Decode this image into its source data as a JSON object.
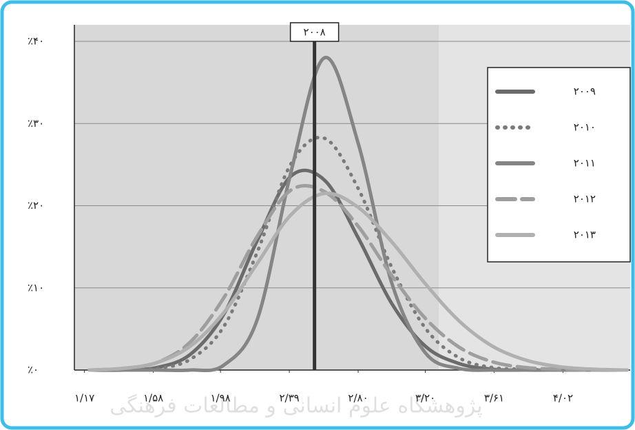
{
  "chart_data": {
    "type": "line",
    "x": [
      1.2,
      1.4,
      1.6,
      1.8,
      2.0,
      2.2,
      2.4,
      2.6,
      2.8,
      3.0,
      3.2,
      3.4,
      3.6,
      3.8,
      4.0,
      4.2,
      4.4
    ],
    "series": [
      {
        "name": "۲۰۰۹",
        "color": "#6b6b6b",
        "style": "solid",
        "values": [
          0,
          0,
          0.3,
          1.9,
          6.8,
          15.8,
          23.6,
          23.1,
          16.1,
          8.1,
          2.9,
          0.8,
          0.1,
          0,
          0,
          0,
          0
        ]
      },
      {
        "name": "۲۰۱۰",
        "color": "#7a7a7a",
        "style": "dotted",
        "values": [
          0,
          0,
          0.2,
          1.3,
          5.3,
          14.4,
          25.1,
          28.2,
          22.1,
          12.5,
          5.1,
          1.5,
          0.3,
          0.1,
          0,
          0,
          0
        ]
      },
      {
        "name": "۲۰۱۱",
        "color": "#858585",
        "style": "solid",
        "values": [
          0,
          0,
          0,
          0,
          0.6,
          6.2,
          24.1,
          38,
          27.6,
          10.6,
          2.1,
          0.2,
          0,
          0,
          0,
          0,
          0
        ]
      },
      {
        "name": "۲۰۱۲",
        "color": "#9e9e9e",
        "style": "dashed",
        "values": [
          0,
          0.2,
          0.9,
          3.4,
          8.8,
          16.3,
          21.9,
          21.7,
          17.5,
          11.5,
          6.3,
          2.8,
          1.0,
          0.3,
          0.1,
          0,
          0
        ]
      },
      {
        "name": "۲۰۱۳",
        "color": "#b0b0b0",
        "style": "solid",
        "values": [
          0,
          0.2,
          0.9,
          2.9,
          7.0,
          13.0,
          18.9,
          21.5,
          19.8,
          15.6,
          10.5,
          6.0,
          2.9,
          1.2,
          0.4,
          0.1,
          0
        ]
      }
    ],
    "xlim": [
      1.11,
      4.42
    ],
    "ylim": [
      0,
      40
    ],
    "xticks": [
      {
        "value": 1.17,
        "label": "۱/۱۷"
      },
      {
        "value": 1.58,
        "label": "۱/۵۸"
      },
      {
        "value": 1.98,
        "label": "۱/۹۸"
      },
      {
        "value": 2.39,
        "label": "۲/۳۹"
      },
      {
        "value": 2.8,
        "label": "۲/۸۰"
      },
      {
        "value": 3.2,
        "label": "۳/۲۰"
      },
      {
        "value": 3.61,
        "label": "۳/۶۱"
      },
      {
        "value": 4.02,
        "label": "۴/۰۲"
      }
    ],
    "yticks": [
      {
        "value": 0,
        "label": "٪۰"
      },
      {
        "value": 10,
        "label": "٪۱۰"
      },
      {
        "value": 20,
        "label": "٪۲۰"
      },
      {
        "value": 30,
        "label": "٪۳۰"
      },
      {
        "value": 40,
        "label": "٪۴۰"
      }
    ],
    "grid": true,
    "legend": "top-right",
    "marker": {
      "x": 2.54,
      "label": "۲۰۰۸"
    },
    "watermark": "پژوهشگاه علوم انسانی و مطالعات فرهنگی"
  }
}
